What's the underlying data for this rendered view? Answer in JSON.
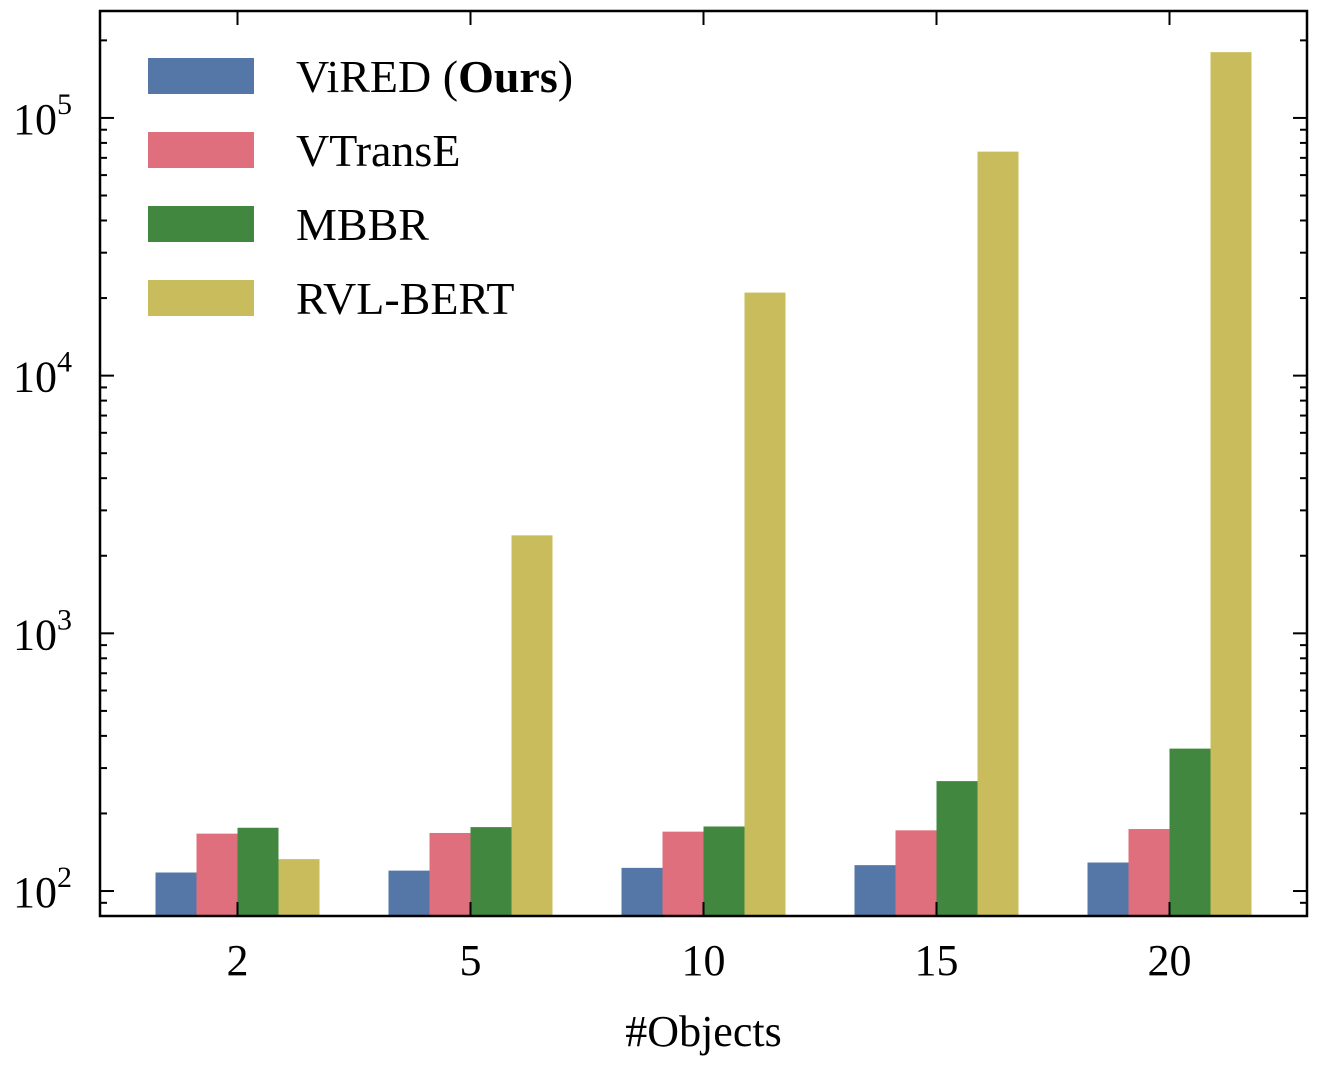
{
  "chart_data": {
    "type": "bar",
    "xlabel": "#Objects",
    "ylabel": "",
    "yscale": "log",
    "ylim": [
      80,
      260000
    ],
    "grid": false,
    "legend_position": "top-left",
    "categories": [
      "2",
      "5",
      "10",
      "15",
      "20"
    ],
    "series": [
      {
        "name": "ViRED",
        "name_suffix_bold": "Ours",
        "color": "#5577a8",
        "values": [
          118,
          120,
          123,
          126,
          129
        ]
      },
      {
        "name": "VTransE",
        "color": "#e06f7d",
        "values": [
          167,
          168,
          170,
          172,
          174
        ]
      },
      {
        "name": "MBBR",
        "color": "#41873f",
        "values": [
          176,
          177,
          178,
          267,
          357
        ]
      },
      {
        "name": "RVL-BERT",
        "color": "#c8bc5c",
        "values": [
          133,
          2400,
          21000,
          74000,
          180000
        ]
      }
    ],
    "yticks": [
      {
        "base": "10",
        "exp": "2",
        "value": 100
      },
      {
        "base": "10",
        "exp": "3",
        "value": 1000
      },
      {
        "base": "10",
        "exp": "4",
        "value": 10000
      },
      {
        "base": "10",
        "exp": "5",
        "value": 100000
      }
    ]
  }
}
